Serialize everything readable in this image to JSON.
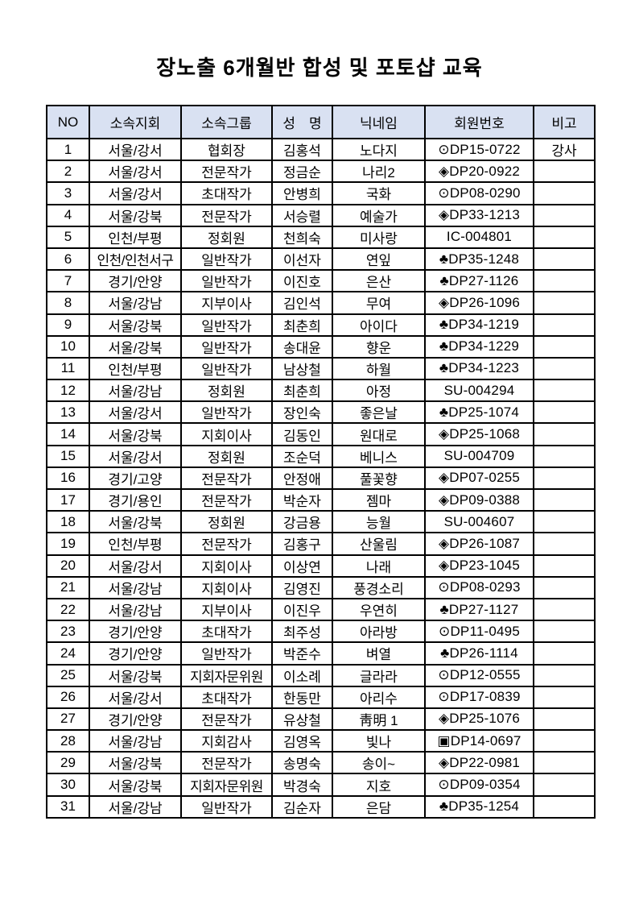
{
  "title": "장노출 6개월반 합성 및 포토샵 교육",
  "colors": {
    "header_bg": "#d9e1f2",
    "border": "#000000",
    "text": "#000000"
  },
  "table": {
    "headers": [
      "NO",
      "소속지회",
      "소속그룹",
      "성　명",
      "닉네임",
      "회원번호",
      "비고"
    ],
    "column_keys": [
      "no",
      "branch",
      "group",
      "name",
      "nickname",
      "member_no",
      "note"
    ],
    "rows": [
      {
        "no": "1",
        "branch": "서울/강서",
        "group": "협회장",
        "name": "김홍석",
        "nickname": "노다지",
        "member_no": "⊙DP15-0722",
        "note": "강사"
      },
      {
        "no": "2",
        "branch": "서울/강서",
        "group": "전문작가",
        "name": "정금순",
        "nickname": "나리2",
        "member_no": "◈DP20-0922",
        "note": ""
      },
      {
        "no": "3",
        "branch": "서울/강서",
        "group": "초대작가",
        "name": "안병희",
        "nickname": "국화",
        "member_no": "⊙DP08-0290",
        "note": ""
      },
      {
        "no": "4",
        "branch": "서울/강북",
        "group": "전문작가",
        "name": "서승렬",
        "nickname": "예술가",
        "member_no": "◈DP33-1213",
        "note": ""
      },
      {
        "no": "5",
        "branch": "인천/부평",
        "group": "정회원",
        "name": "천희숙",
        "nickname": "미사랑",
        "member_no": "IC-004801",
        "note": ""
      },
      {
        "no": "6",
        "branch": "인천/인천서구",
        "group": "일반작가",
        "name": "이선자",
        "nickname": "연잎",
        "member_no": "♣DP35-1248",
        "note": ""
      },
      {
        "no": "7",
        "branch": "경기/안양",
        "group": "일반작가",
        "name": "이진호",
        "nickname": "은산",
        "member_no": "♣DP27-1126",
        "note": ""
      },
      {
        "no": "8",
        "branch": "서울/강남",
        "group": "지부이사",
        "name": "김인석",
        "nickname": "무여",
        "member_no": "◈DP26-1096",
        "note": ""
      },
      {
        "no": "9",
        "branch": "서울/강북",
        "group": "일반작가",
        "name": "최춘희",
        "nickname": "아이다",
        "member_no": "♣DP34-1219",
        "note": ""
      },
      {
        "no": "10",
        "branch": "서울/강북",
        "group": "일반작가",
        "name": "송대윤",
        "nickname": "향운",
        "member_no": "♣DP34-1229",
        "note": ""
      },
      {
        "no": "11",
        "branch": "인천/부평",
        "group": "일반작가",
        "name": "남상철",
        "nickname": "하월",
        "member_no": "♣DP34-1223",
        "note": ""
      },
      {
        "no": "12",
        "branch": "서울/강남",
        "group": "정회원",
        "name": "최춘희",
        "nickname": "아정",
        "member_no": "SU-004294",
        "note": ""
      },
      {
        "no": "13",
        "branch": "서울/강서",
        "group": "일반작가",
        "name": "장인숙",
        "nickname": "좋은날",
        "member_no": "♣DP25-1074",
        "note": ""
      },
      {
        "no": "14",
        "branch": "서울/강북",
        "group": "지회이사",
        "name": "김동인",
        "nickname": "원대로",
        "member_no": "◈DP25-1068",
        "note": ""
      },
      {
        "no": "15",
        "branch": "서울/강서",
        "group": "정회원",
        "name": "조순덕",
        "nickname": "베니스",
        "member_no": "SU-004709",
        "note": ""
      },
      {
        "no": "16",
        "branch": "경기/고양",
        "group": "전문작가",
        "name": "안정애",
        "nickname": "풀꽃향",
        "member_no": "◈DP07-0255",
        "note": ""
      },
      {
        "no": "17",
        "branch": "경기/용인",
        "group": "전문작가",
        "name": "박순자",
        "nickname": "젬마",
        "member_no": "◈DP09-0388",
        "note": ""
      },
      {
        "no": "18",
        "branch": "서울/강북",
        "group": "정회원",
        "name": "강금용",
        "nickname": "능월",
        "member_no": "SU-004607",
        "note": ""
      },
      {
        "no": "19",
        "branch": "인천/부평",
        "group": "전문작가",
        "name": "김홍구",
        "nickname": "산울림",
        "member_no": "◈DP26-1087",
        "note": ""
      },
      {
        "no": "20",
        "branch": "서울/강서",
        "group": "지회이사",
        "name": "이상연",
        "nickname": "나래",
        "member_no": "◈DP23-1045",
        "note": ""
      },
      {
        "no": "21",
        "branch": "서울/강남",
        "group": "지회이사",
        "name": "김영진",
        "nickname": "풍경소리",
        "member_no": "⊙DP08-0293",
        "note": ""
      },
      {
        "no": "22",
        "branch": "서울/강남",
        "group": "지부이사",
        "name": "이진우",
        "nickname": "우연히",
        "member_no": "♣DP27-1127",
        "note": ""
      },
      {
        "no": "23",
        "branch": "경기/안양",
        "group": "초대작가",
        "name": "최주성",
        "nickname": "아라방",
        "member_no": "⊙DP11-0495",
        "note": ""
      },
      {
        "no": "24",
        "branch": "경기/안양",
        "group": "일반작가",
        "name": "박준수",
        "nickname": "벼열",
        "member_no": "♣DP26-1114",
        "note": ""
      },
      {
        "no": "25",
        "branch": "서울/강북",
        "group": "지회자문위원",
        "name": "이소례",
        "nickname": "글라라",
        "member_no": "⊙DP12-0555",
        "note": ""
      },
      {
        "no": "26",
        "branch": "서울/강서",
        "group": "초대작가",
        "name": "한동만",
        "nickname": "아리수",
        "member_no": "⊙DP17-0839",
        "note": ""
      },
      {
        "no": "27",
        "branch": "경기/안양",
        "group": "전문작가",
        "name": "유상철",
        "nickname": "靑明 1",
        "member_no": "◈DP25-1076",
        "note": ""
      },
      {
        "no": "28",
        "branch": "서울/강남",
        "group": "지회감사",
        "name": "김영옥",
        "nickname": "빛나",
        "member_no": "▣DP14-0697",
        "note": ""
      },
      {
        "no": "29",
        "branch": "서울/강북",
        "group": "전문작가",
        "name": "송명숙",
        "nickname": "송이~",
        "member_no": "◈DP22-0981",
        "note": ""
      },
      {
        "no": "30",
        "branch": "서울/강북",
        "group": "지회자문위원",
        "name": "박경숙",
        "nickname": "지호",
        "member_no": "⊙DP09-0354",
        "note": ""
      },
      {
        "no": "31",
        "branch": "서울/강남",
        "group": "일반작가",
        "name": "김순자",
        "nickname": "은담",
        "member_no": "♣DP35-1254",
        "note": ""
      }
    ]
  }
}
